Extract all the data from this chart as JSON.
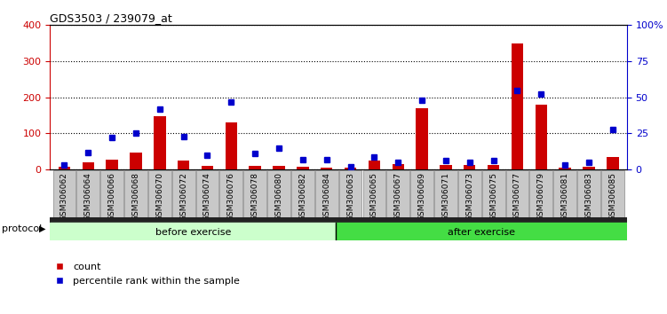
{
  "title": "GDS3503 / 239079_at",
  "samples": [
    "GSM306062",
    "GSM306064",
    "GSM306066",
    "GSM306068",
    "GSM306070",
    "GSM306072",
    "GSM306074",
    "GSM306076",
    "GSM306078",
    "GSM306080",
    "GSM306082",
    "GSM306084",
    "GSM306063",
    "GSM306065",
    "GSM306067",
    "GSM306069",
    "GSM306071",
    "GSM306073",
    "GSM306075",
    "GSM306077",
    "GSM306079",
    "GSM306081",
    "GSM306083",
    "GSM306085"
  ],
  "counts": [
    8,
    20,
    28,
    48,
    148,
    25,
    10,
    130,
    10,
    10,
    8,
    5,
    5,
    25,
    15,
    170,
    12,
    12,
    12,
    350,
    180,
    5,
    8,
    35
  ],
  "percentiles": [
    3,
    12,
    22,
    25,
    42,
    23,
    10,
    47,
    11,
    15,
    7,
    7,
    2,
    9,
    5,
    48,
    6,
    5,
    6,
    55,
    52,
    3,
    5,
    28
  ],
  "before_exercise_count": 12,
  "after_exercise_count": 12,
  "ylim_left": [
    0,
    400
  ],
  "ylim_right": [
    0,
    100
  ],
  "yticks_left": [
    0,
    100,
    200,
    300,
    400
  ],
  "yticks_right": [
    0,
    25,
    50,
    75,
    100
  ],
  "bar_color": "#cc0000",
  "dot_color": "#0000cc",
  "before_color": "#ccffcc",
  "after_color": "#44dd44",
  "left_axis_color": "#cc0000",
  "right_axis_color": "#0000cc",
  "protocol_label": "protocol",
  "before_label": "before exercise",
  "after_label": "after exercise",
  "legend_count_label": "count",
  "legend_pct_label": "percentile rank within the sample",
  "background_color": "#ffffff"
}
